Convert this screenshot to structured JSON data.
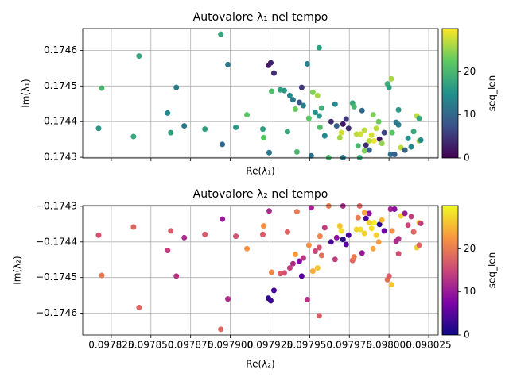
{
  "chart_data": [
    {
      "type": "scatter",
      "title": "Autovalore λ₁ nel tempo",
      "xlabel": "Re(λ₁)",
      "ylabel": "Im(λ₁)",
      "colormap": "viridis",
      "colorbar_label": "seq_len",
      "clim": [
        0,
        30
      ],
      "cticks": [
        0,
        10,
        20
      ],
      "xlim": [
        0.097807,
        0.098031
      ],
      "ylim": [
        0.174298,
        0.174661
      ],
      "xticks": [
        0.097825,
        0.09785,
        0.097875,
        0.0979,
        0.097925,
        0.09795,
        0.097975,
        0.098,
        0.098025
      ],
      "xtick_labels": false,
      "yticks": [
        0.1743,
        0.1744,
        0.1745,
        0.1746
      ],
      "grid": true,
      "x": [
        0.097819,
        0.097817,
        0.0978425,
        0.097839,
        0.0978605,
        0.0978625,
        0.097866,
        0.097871,
        0.097884,
        0.097894,
        0.097895,
        0.0978985,
        0.0979035,
        0.0979105,
        0.0979205,
        0.097921,
        0.0979245,
        0.097924,
        0.0979255,
        0.0979275,
        0.097926,
        0.0979315,
        0.097934,
        0.097936,
        0.0979375,
        0.0979395,
        0.097941,
        0.097942,
        0.0979435,
        0.097946,
        0.097945,
        0.0979485,
        0.0979495,
        0.097951,
        0.097952,
        0.097955,
        0.097956,
        0.0979535,
        0.097956,
        0.0979565,
        0.0979575,
        0.0979595,
        0.097962,
        0.0979635,
        0.097966,
        0.097967,
        0.097969,
        0.097971,
        0.097971,
        0.097973,
        0.0979745,
        0.097977,
        0.097978,
        0.0979805,
        0.0979815,
        0.097982,
        0.0979845,
        0.0979855,
        0.0979875,
        0.097989,
        0.0979905,
        0.097992,
        0.0979935,
        0.097994,
        0.0979955,
        0.097997,
        0.097999,
        0.098,
        0.0980015,
        0.098001,
        0.098002,
        0.0980035,
        0.098006,
        0.098006,
        0.0980075,
        0.09801,
        0.098012,
        0.098014,
        0.0980155,
        0.0980175,
        0.098019,
        0.098019,
        0.09802,
        0.09799,
        0.097983,
        0.0980045,
        0.09797,
        0.0979845,
        0.0979875,
        0.0979795
      ],
      "y": [
        0.174494,
        0.174381,
        0.174584,
        0.174358,
        0.174424,
        0.174369,
        0.174496,
        0.174388,
        0.174379,
        0.174645,
        0.174336,
        0.17456,
        0.174384,
        0.174419,
        0.174379,
        0.174355,
        0.174313,
        0.174558,
        0.174565,
        0.174536,
        0.174485,
        0.174489,
        0.174487,
        0.174372,
        0.174473,
        0.174461,
        0.174435,
        0.174315,
        0.174454,
        0.174445,
        0.174496,
        0.174562,
        0.174409,
        0.174304,
        0.174482,
        0.174473,
        0.174607,
        0.174426,
        0.174416,
        0.174384,
        0.174438,
        0.17436,
        0.174299,
        0.1744,
        0.174449,
        0.174388,
        0.174355,
        0.174299,
        0.174393,
        0.174407,
        0.174381,
        0.174452,
        0.174442,
        0.174332,
        0.174299,
        0.174365,
        0.174376,
        0.174334,
        0.17432,
        0.174362,
        0.174346,
        0.174381,
        0.1744,
        0.174351,
        0.174339,
        0.174369,
        0.174506,
        0.174496,
        0.17452,
        0.174308,
        0.174369,
        0.174308,
        0.174433,
        0.174391,
        0.174327,
        0.17432,
        0.174353,
        0.174329,
        0.174372,
        0.174416,
        0.174409,
        0.174346,
        0.174348,
        0.174419,
        0.174431,
        0.174398,
        0.174369,
        0.174318,
        0.174346,
        0.174365
      ],
      "c": [
        20,
        16,
        18,
        18,
        14,
        17,
        13,
        12,
        17,
        18,
        10,
        12,
        16,
        22,
        17,
        22,
        12,
        2,
        3,
        4,
        21,
        17,
        16,
        18,
        14,
        12,
        23,
        20,
        8,
        13,
        5,
        13,
        22,
        11,
        24,
        26,
        17,
        15,
        16,
        21,
        19,
        14,
        20,
        4,
        14,
        9,
        26,
        12,
        2,
        5,
        4,
        18,
        20,
        20,
        18,
        28,
        27,
        4,
        9,
        28,
        29,
        27,
        23,
        2,
        25,
        6,
        19,
        17,
        26,
        11,
        22,
        9,
        16,
        13,
        27,
        10,
        15,
        14,
        18,
        27,
        18,
        26,
        14,
        24,
        10,
        12,
        28,
        24,
        27,
        27
      ]
    },
    {
      "type": "scatter",
      "title": "Autovalore λ₂ nel tempo",
      "xlabel": "Re(λ₂)",
      "ylabel": "Im(λ₂)",
      "colormap": "plasma",
      "colorbar_label": "seq_len",
      "clim": [
        0,
        30
      ],
      "cticks": [
        0,
        10,
        20
      ],
      "xlim": [
        0.097807,
        0.098031
      ],
      "ylim": [
        -0.174661,
        -0.174298
      ],
      "xticks": [
        0.097825,
        {
          "value": 0.09785,
          "label": "0.097850"
        },
        0.097875,
        {
          "value": 0.0979,
          "label": "0.097900"
        },
        0.097925,
        {
          "value": 0.09795,
          "label": "0.097950"
        },
        0.097975,
        {
          "value": 0.098,
          "label": "0.098000"
        },
        0.098025
      ],
      "xtick_labels": true,
      "yticks": [
        {
          "value": -0.1746,
          "label": "−0.1746"
        },
        {
          "value": -0.1745,
          "label": "−0.1745"
        },
        {
          "value": -0.1744,
          "label": "−0.1744"
        },
        {
          "value": -0.1743,
          "label": "−0.1743"
        }
      ],
      "grid": true,
      "x": [
        0.097819,
        0.097817,
        0.0978425,
        0.097839,
        0.0978605,
        0.0978625,
        0.097866,
        0.097871,
        0.097884,
        0.097894,
        0.097895,
        0.0978985,
        0.0979035,
        0.0979105,
        0.0979205,
        0.097921,
        0.0979245,
        0.097924,
        0.0979255,
        0.0979275,
        0.097926,
        0.0979315,
        0.097934,
        0.097936,
        0.0979375,
        0.0979395,
        0.097941,
        0.097942,
        0.0979435,
        0.097946,
        0.097945,
        0.0979485,
        0.0979495,
        0.097951,
        0.097952,
        0.097955,
        0.097956,
        0.0979535,
        0.097956,
        0.0979565,
        0.0979575,
        0.0979595,
        0.097962,
        0.0979635,
        0.097966,
        0.097967,
        0.097969,
        0.097971,
        0.097971,
        0.097973,
        0.0979745,
        0.097977,
        0.097978,
        0.0979805,
        0.0979815,
        0.097982,
        0.0979845,
        0.0979855,
        0.0979875,
        0.097989,
        0.0979905,
        0.097992,
        0.0979935,
        0.097994,
        0.0979955,
        0.097997,
        0.097999,
        0.098,
        0.0980015,
        0.098001,
        0.098002,
        0.0980035,
        0.098006,
        0.098006,
        0.0980075,
        0.09801,
        0.098012,
        0.098014,
        0.0980155,
        0.0980175,
        0.098019,
        0.098019,
        0.09802,
        0.09799,
        0.097983,
        0.0980045,
        0.09797,
        0.0979845,
        0.0979875,
        0.0979795
      ],
      "y": [
        -0.174494,
        -0.174381,
        -0.174584,
        -0.174358,
        -0.174424,
        -0.174369,
        -0.174496,
        -0.174388,
        -0.174379,
        -0.174645,
        -0.174336,
        -0.17456,
        -0.174384,
        -0.174419,
        -0.174379,
        -0.174355,
        -0.174313,
        -0.174558,
        -0.174565,
        -0.174536,
        -0.174485,
        -0.174489,
        -0.174487,
        -0.174372,
        -0.174473,
        -0.174461,
        -0.174435,
        -0.174315,
        -0.174454,
        -0.174445,
        -0.174496,
        -0.174562,
        -0.174409,
        -0.174304,
        -0.174482,
        -0.174473,
        -0.174607,
        -0.174426,
        -0.174416,
        -0.174384,
        -0.174438,
        -0.17436,
        -0.174299,
        -0.1744,
        -0.174449,
        -0.174388,
        -0.174355,
        -0.174299,
        -0.174393,
        -0.174407,
        -0.174381,
        -0.174452,
        -0.174442,
        -0.174332,
        -0.174299,
        -0.174365,
        -0.174376,
        -0.174334,
        -0.17432,
        -0.174362,
        -0.174346,
        -0.174381,
        -0.1744,
        -0.174351,
        -0.174339,
        -0.174369,
        -0.174506,
        -0.174496,
        -0.17452,
        -0.174308,
        -0.174369,
        -0.174308,
        -0.174433,
        -0.174391,
        -0.174327,
        -0.17432,
        -0.174353,
        -0.174329,
        -0.174372,
        -0.174416,
        -0.174409,
        -0.174346,
        -0.174348,
        -0.174419,
        -0.174431,
        -0.174398,
        -0.174369,
        -0.174318,
        -0.174346,
        -0.174365
      ],
      "c": [
        20,
        16,
        18,
        18,
        14,
        17,
        13,
        12,
        17,
        18,
        10,
        12,
        16,
        22,
        17,
        22,
        12,
        2,
        3,
        4,
        21,
        17,
        16,
        18,
        14,
        12,
        23,
        20,
        8,
        13,
        5,
        13,
        22,
        11,
        24,
        26,
        17,
        15,
        16,
        21,
        19,
        14,
        20,
        4,
        14,
        9,
        26,
        12,
        2,
        5,
        4,
        18,
        20,
        20,
        18,
        28,
        27,
        4,
        9,
        28,
        29,
        27,
        23,
        2,
        25,
        6,
        19,
        17,
        26,
        11,
        22,
        9,
        16,
        13,
        27,
        10,
        15,
        14,
        18,
        27,
        18,
        26,
        14,
        24,
        10,
        12,
        28,
        24,
        27,
        27
      ]
    }
  ]
}
